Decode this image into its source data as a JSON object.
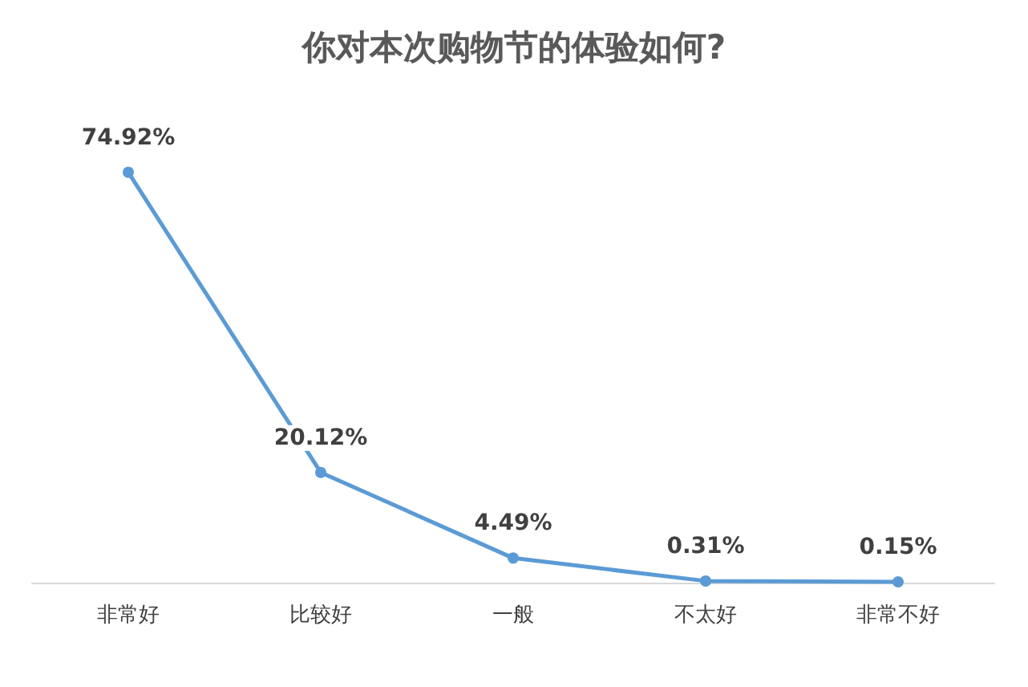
{
  "chart_data": {
    "type": "line",
    "title": "你对本次购物节的体验如何?",
    "categories": [
      "非常好",
      "比较好",
      "一般",
      "不太好",
      "非常不好"
    ],
    "series": [
      {
        "color": "#5b9bd5",
        "values": [
          74.92,
          20.12,
          4.49,
          0.31,
          0.15
        ],
        "value_labels": [
          "74.92%",
          "20.12%",
          "4.49%",
          "0.31%",
          "0.15%"
        ]
      }
    ],
    "grid": false,
    "marker": "circle",
    "line_style": "solid"
  }
}
